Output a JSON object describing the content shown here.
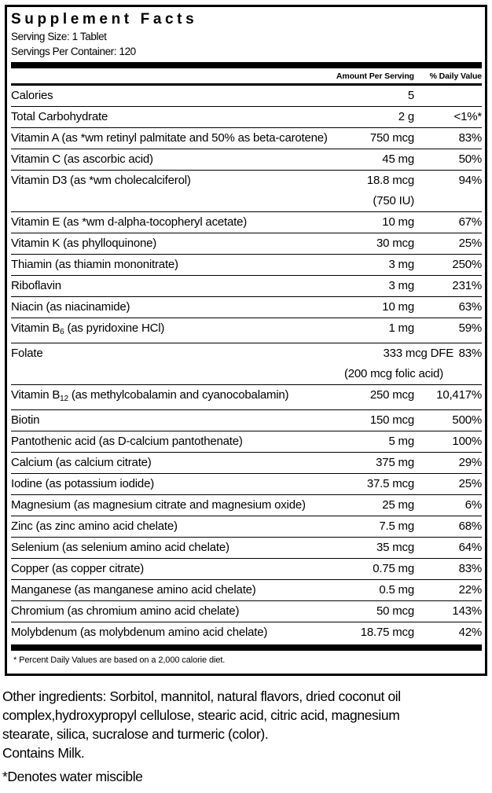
{
  "colors": {
    "text": "#000000",
    "background": "#ffffff",
    "rule": "#000000"
  },
  "panel": {
    "title": "Supplement Facts",
    "serving_size": "Serving Size: 1 Tablet",
    "servings_per_container": "Servings Per Container: 120",
    "columns": {
      "amount": "Amount Per Serving",
      "daily_value": "% Daily Value"
    },
    "rows": [
      {
        "name": "Calories",
        "amount": "5",
        "dv": ""
      },
      {
        "name": "Total Carbohydrate",
        "amount": "2 g",
        "dv": "<1%*"
      },
      {
        "name": "Vitamin A (as *wm retinyl palmitate and 50% as beta-carotene)",
        "amount": "750 mcg",
        "dv": "83%"
      },
      {
        "name": "Vitamin C (as ascorbic acid)",
        "amount": "45 mg",
        "dv": "50%"
      },
      {
        "name": "Vitamin D3 (as *wm cholecalciferol)",
        "amount": "18.8 mcg",
        "dv": "94%",
        "amount2": "(750 IU)",
        "amount2_shift": 0
      },
      {
        "name": "Vitamin E (as *wm d-alpha-tocopheryl acetate)",
        "amount": "10 mg",
        "dv": "67%"
      },
      {
        "name": "Vitamin K (as phylloquinone)",
        "amount": "30 mcg",
        "dv": "25%"
      },
      {
        "name": "Thiamin (as thiamin mononitrate)",
        "amount": "3 mg",
        "dv": "250%"
      },
      {
        "name": "Riboflavin",
        "amount": "3 mg",
        "dv": "231%"
      },
      {
        "name": "Niacin (as niacinamide)",
        "amount": "10 mg",
        "dv": "63%"
      },
      {
        "name": "Vitamin B",
        "sub": "6",
        "name2": " (as pyridoxine HCl)",
        "amount": "1 mg",
        "dv": "59%"
      },
      {
        "name": "Folate",
        "amount": "333 mcg DFE",
        "dv": "83%",
        "amount_shift": 50,
        "amount2": "(200 mcg folic acid)",
        "amount2_shift": 37
      },
      {
        "name": "Vitamin B",
        "sub": "12",
        "name2": " (as methylcobalamin and cyanocobalamin)",
        "amount": "250 mcg",
        "dv": "10,417%"
      },
      {
        "name": "Biotin",
        "amount": "150 mcg",
        "dv": "500%"
      },
      {
        "name": "Pantothenic acid (as D-calcium pantothenate)",
        "amount": "5 mg",
        "dv": "100%"
      },
      {
        "name": "Calcium (as calcium citrate)",
        "amount": "375 mg",
        "dv": "29%"
      },
      {
        "name": "Iodine (as potassium iodide)",
        "amount": "37.5 mcg",
        "dv": "25%"
      },
      {
        "name": "Magnesium (as magnesium citrate and magnesium oxide)",
        "amount": "25 mg",
        "dv": "6%"
      },
      {
        "name": "Zinc (as zinc amino acid chelate)",
        "amount": "7.5 mg",
        "dv": "68%"
      },
      {
        "name": "Selenium (as selenium amino acid chelate)",
        "amount": "35 mcg",
        "dv": "64%"
      },
      {
        "name": "Copper (as copper citrate)",
        "amount": "0.75 mg",
        "dv": "83%"
      },
      {
        "name": "Manganese (as manganese amino acid chelate)",
        "amount": "0.5 mg",
        "dv": "22%"
      },
      {
        "name": "Chromium (as chromium amino acid chelate)",
        "amount": "50 mcg",
        "dv": "143%"
      },
      {
        "name": "Molybdenum (as molybdenum amino acid chelate)",
        "amount": "18.75 mcg",
        "dv": "42%"
      }
    ],
    "footnote": "* Percent Daily Values are based on a 2,000 calorie diet."
  },
  "footer": {
    "other_ingredients_lines": [
      "Other ingredients: Sorbitol, mannitol, natural flavors, dried coconut oil",
      "complex,hydroxypropyl cellulose, stearic acid, citric acid, magnesium",
      "stearate, silica, sucralose and turmeric (color)."
    ],
    "contains": "Contains Milk.",
    "denotes": "*Denotes water miscible"
  }
}
